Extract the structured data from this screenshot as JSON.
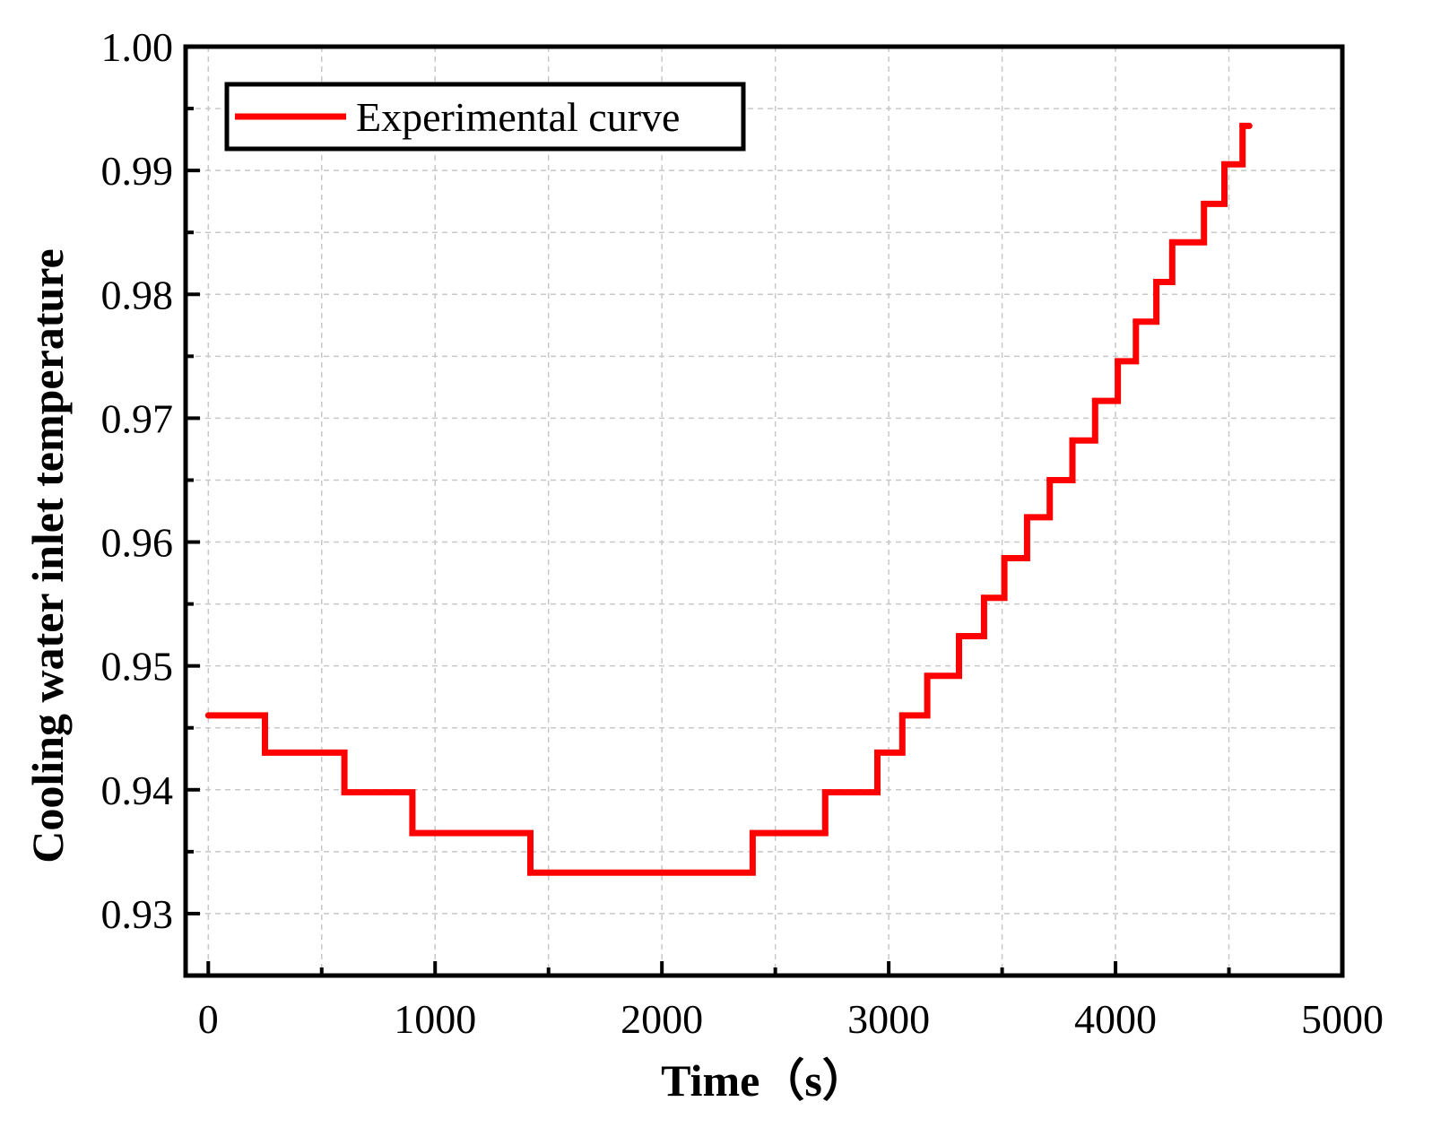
{
  "chart_data": {
    "type": "line",
    "title": "",
    "xlabel": "Time（s）",
    "ylabel": "Cooling water inlet temperature",
    "xlim": [
      -100,
      5000
    ],
    "ylim": [
      0.925,
      1.0
    ],
    "x_ticks": [
      0,
      1000,
      2000,
      3000,
      4000,
      5000
    ],
    "x_tick_labels": [
      "0",
      "1000",
      "2000",
      "3000",
      "4000",
      "5000"
    ],
    "y_ticks": [
      0.93,
      0.94,
      0.95,
      0.96,
      0.97,
      0.98,
      0.99,
      1.0
    ],
    "y_tick_labels": [
      "0.93",
      "0.94",
      "0.95",
      "0.96",
      "0.97",
      "0.98",
      "0.99",
      "1.00"
    ],
    "grid": true,
    "legend_position": "top-left",
    "colors": {
      "series": "#ff0000",
      "grid": "#c8c8c8",
      "axis": "#000000"
    },
    "series": [
      {
        "name": "Experimental curve",
        "step": "post",
        "x": [
          0,
          250,
          600,
          900,
          1420,
          2400,
          2720,
          2950,
          3060,
          3170,
          3310,
          3420,
          3510,
          3610,
          3710,
          3810,
          3910,
          4010,
          4090,
          4180,
          4250,
          4390,
          4480,
          4560,
          4590
        ],
        "y": [
          0.946,
          0.943,
          0.9398,
          0.9365,
          0.9333,
          0.9365,
          0.9398,
          0.943,
          0.946,
          0.9492,
          0.9524,
          0.9555,
          0.9587,
          0.962,
          0.965,
          0.9682,
          0.9714,
          0.9746,
          0.9778,
          0.981,
          0.9842,
          0.9873,
          0.9905,
          0.9936,
          0.9936
        ]
      }
    ]
  }
}
